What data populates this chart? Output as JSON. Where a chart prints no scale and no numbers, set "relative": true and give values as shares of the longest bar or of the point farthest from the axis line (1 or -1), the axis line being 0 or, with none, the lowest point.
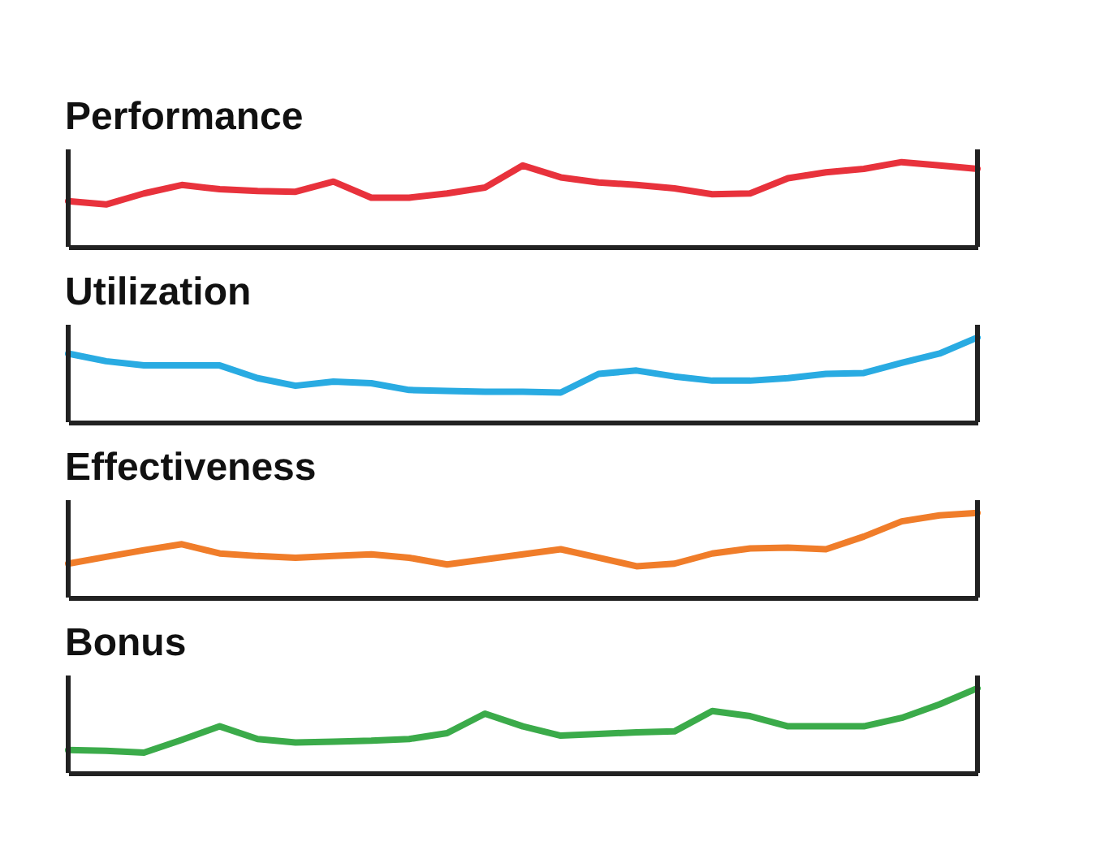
{
  "chart_data": [
    {
      "type": "line",
      "title": "Performance",
      "relative": true,
      "color": "#e8323c",
      "categories": [
        null,
        null,
        null,
        null,
        null,
        null,
        null,
        null,
        null,
        null,
        null,
        null,
        null,
        null,
        null,
        null,
        null,
        null,
        null,
        null,
        null,
        null,
        null,
        null,
        null
      ],
      "values": [
        0.54,
        0.5,
        0.63,
        0.73,
        0.68,
        0.66,
        0.65,
        0.77,
        0.58,
        0.58,
        0.63,
        0.7,
        0.96,
        0.82,
        0.76,
        0.73,
        0.69,
        0.62,
        0.63,
        0.81,
        0.88,
        0.92,
        1.0,
        0.96,
        0.92
      ]
    },
    {
      "type": "line",
      "title": "Utilization",
      "relative": true,
      "color": "#29abe2",
      "categories": [
        null,
        null,
        null,
        null,
        null,
        null,
        null,
        null,
        null,
        null,
        null,
        null,
        null,
        null,
        null,
        null,
        null,
        null,
        null,
        null,
        null,
        null,
        null,
        null,
        null
      ],
      "values": [
        0.81,
        0.72,
        0.67,
        0.67,
        0.67,
        0.52,
        0.43,
        0.48,
        0.46,
        0.38,
        0.37,
        0.36,
        0.36,
        0.35,
        0.57,
        0.61,
        0.54,
        0.49,
        0.49,
        0.52,
        0.57,
        0.58,
        0.7,
        0.81,
        1.0
      ]
    },
    {
      "type": "line",
      "title": "Effectiveness",
      "relative": true,
      "color": "#f07d2a",
      "categories": [
        null,
        null,
        null,
        null,
        null,
        null,
        null,
        null,
        null,
        null,
        null,
        null,
        null,
        null,
        null,
        null,
        null,
        null,
        null,
        null,
        null,
        null,
        null,
        null,
        null
      ],
      "values": [
        0.4,
        0.48,
        0.56,
        0.63,
        0.52,
        0.49,
        0.47,
        0.49,
        0.51,
        0.47,
        0.39,
        0.45,
        0.51,
        0.57,
        0.47,
        0.37,
        0.4,
        0.52,
        0.58,
        0.59,
        0.57,
        0.72,
        0.9,
        0.97,
        1.0
      ]
    },
    {
      "type": "line",
      "title": "Bonus",
      "relative": true,
      "color": "#3bab4a",
      "categories": [
        null,
        null,
        null,
        null,
        null,
        null,
        null,
        null,
        null,
        null,
        null,
        null,
        null,
        null,
        null,
        null,
        null,
        null,
        null,
        null,
        null,
        null,
        null,
        null,
        null
      ],
      "values": [
        0.27,
        0.26,
        0.24,
        0.39,
        0.55,
        0.4,
        0.36,
        0.37,
        0.38,
        0.4,
        0.47,
        0.7,
        0.55,
        0.44,
        0.46,
        0.48,
        0.49,
        0.73,
        0.67,
        0.55,
        0.55,
        0.55,
        0.65,
        0.81,
        1.0
      ]
    }
  ]
}
